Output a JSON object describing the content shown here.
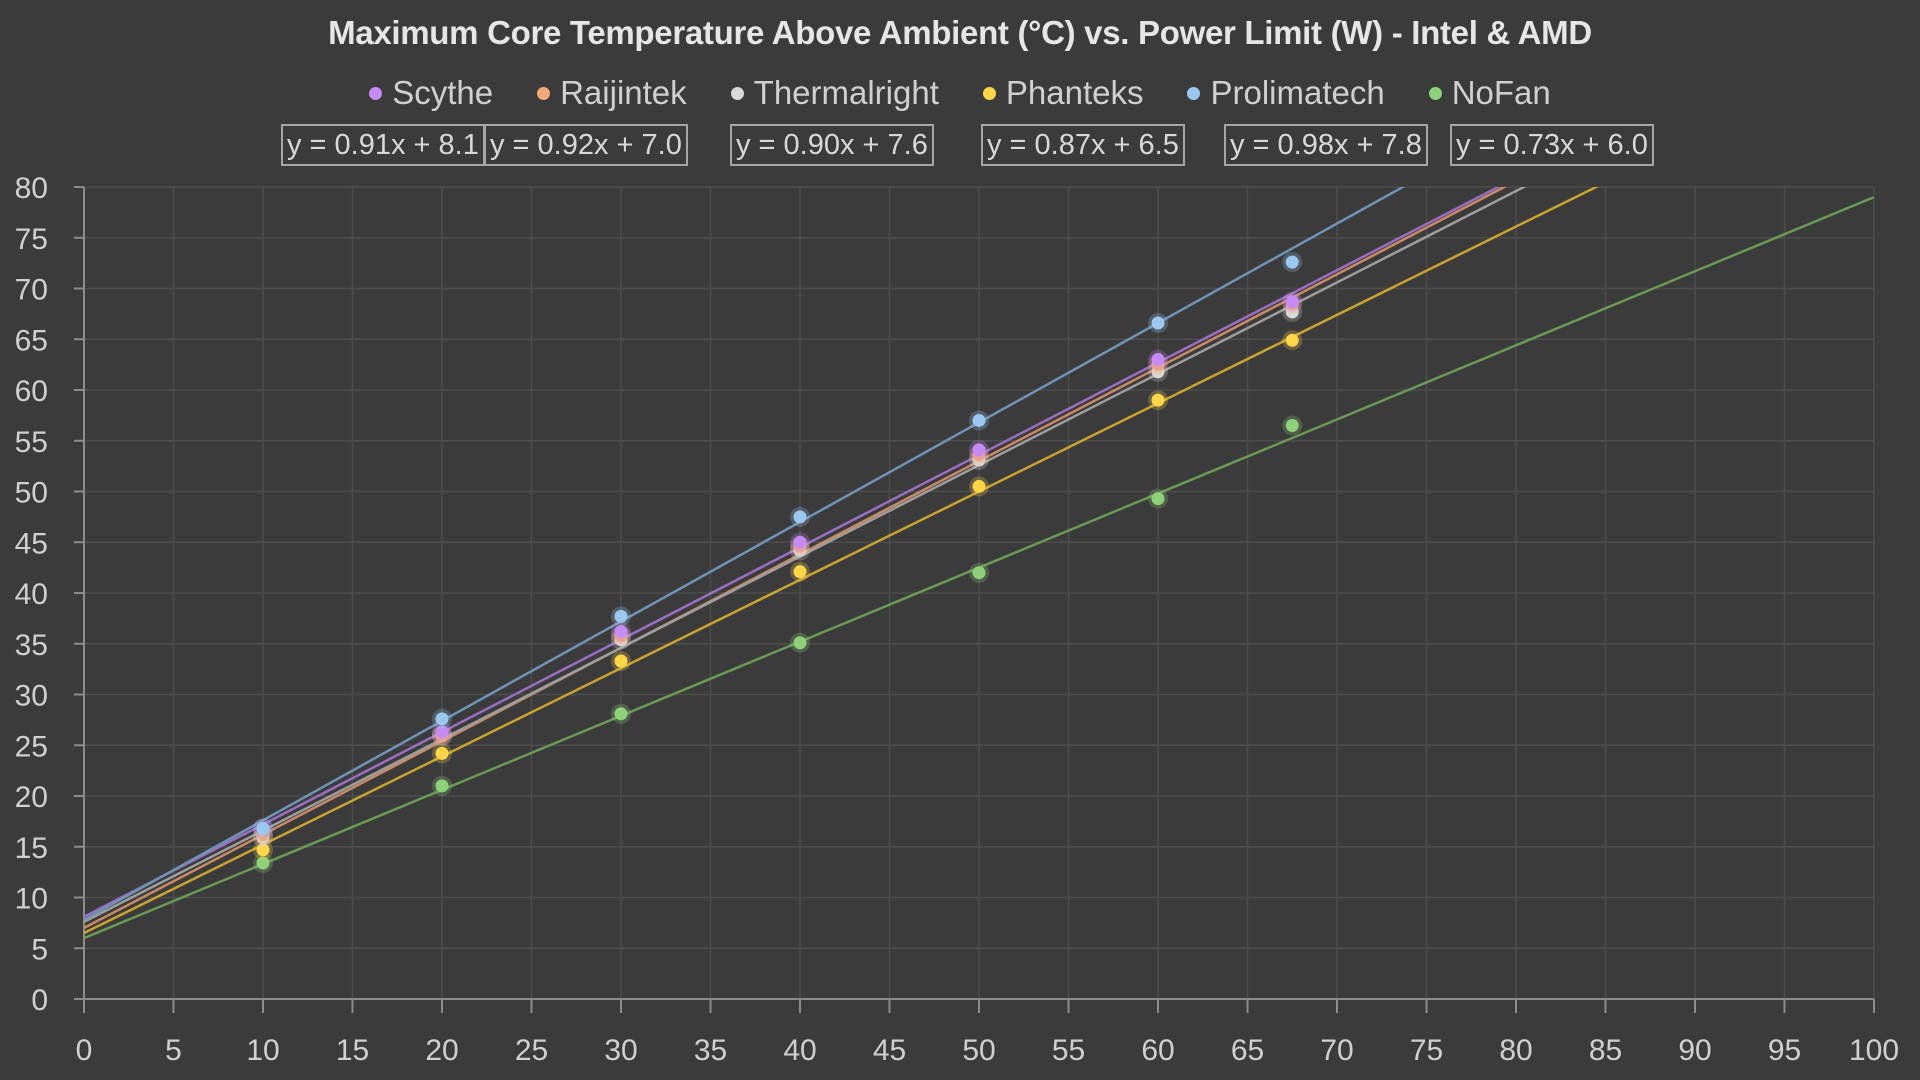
{
  "chart_data": {
    "type": "scatter",
    "title": "Maximum Core Temperature Above Ambient (°C) vs. Power Limit (W) - Intel & AMD",
    "xlabel": "",
    "ylabel": "",
    "xlim": [
      0,
      100
    ],
    "ylim": [
      0,
      80
    ],
    "xticks": [
      0,
      5,
      10,
      15,
      20,
      25,
      30,
      35,
      40,
      45,
      50,
      55,
      60,
      65,
      70,
      75,
      80,
      85,
      90,
      95,
      100
    ],
    "yticks": [
      0,
      5,
      10,
      15,
      20,
      25,
      30,
      35,
      40,
      45,
      50,
      55,
      60,
      65,
      70,
      75,
      80
    ],
    "grid": true,
    "legend_position": "top",
    "x": [
      10,
      20,
      30,
      40,
      50,
      60,
      67.5
    ],
    "series": [
      {
        "name": "Scythe",
        "color": "#c58cf5",
        "line_color": "#9a6fc2",
        "values": [
          16.8,
          26.3,
          36.2,
          45.0,
          54.1,
          63.0,
          68.7
        ],
        "trendline": {
          "slope": 0.91,
          "intercept": 8.1,
          "label": "y = 0.91x + 8.1"
        }
      },
      {
        "name": "Raijintek",
        "color": "#f4a97a",
        "line_color": "#c98a66",
        "values": [
          16.2,
          25.9,
          35.8,
          44.6,
          53.6,
          62.5,
          68.5
        ],
        "trendline": {
          "slope": 0.92,
          "intercept": 7.0,
          "label": "y = 0.92x + 7.0"
        }
      },
      {
        "name": "Thermalright",
        "color": "#d9d9d9",
        "line_color": "#9e9e9e",
        "values": [
          15.9,
          26.0,
          35.4,
          44.2,
          53.1,
          61.8,
          67.7
        ],
        "trendline": {
          "slope": 0.9,
          "intercept": 7.6,
          "label": "y = 0.90x + 7.6"
        }
      },
      {
        "name": "Phanteks",
        "color": "#ffd54a",
        "line_color": "#c9a331",
        "values": [
          14.7,
          24.2,
          33.3,
          42.1,
          50.5,
          59.0,
          64.9
        ],
        "trendline": {
          "slope": 0.87,
          "intercept": 6.5,
          "label": "y = 0.87x + 6.5"
        }
      },
      {
        "name": "Prolimatech",
        "color": "#9cc8f0",
        "line_color": "#6f93b5",
        "values": [
          16.8,
          27.6,
          37.7,
          47.5,
          57.0,
          66.6,
          72.6
        ],
        "trendline": {
          "slope": 0.98,
          "intercept": 7.8,
          "label": "y = 0.98x + 7.8"
        }
      },
      {
        "name": "NoFan",
        "color": "#8fd07a",
        "line_color": "#6a9a55",
        "values": [
          13.4,
          21.0,
          28.1,
          35.1,
          42.0,
          49.3,
          56.5
        ],
        "trendline": {
          "slope": 0.73,
          "intercept": 6.0,
          "label": "y = 0.73x + 6.0"
        }
      }
    ]
  },
  "colors": {
    "background": "#3b3b3b",
    "gridline": "#4d4d4d",
    "axis": "#8c8c8c"
  }
}
